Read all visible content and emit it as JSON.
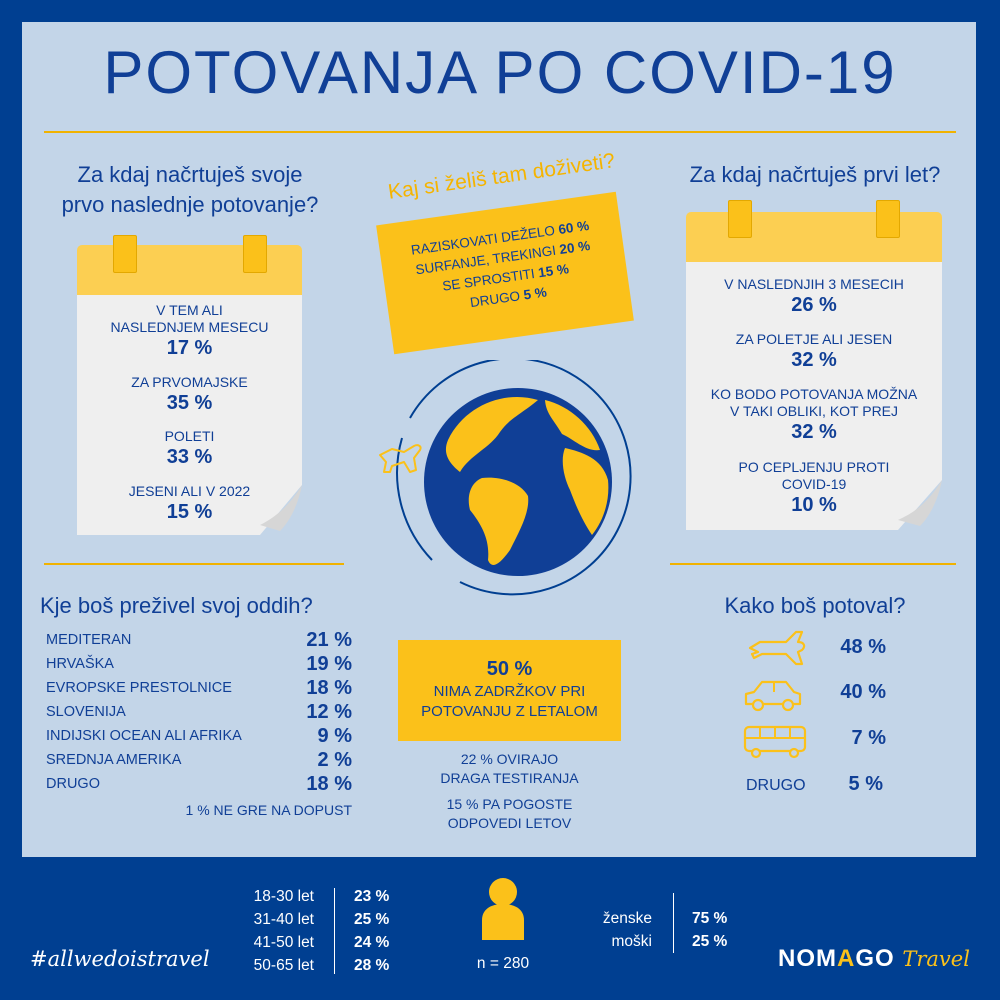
{
  "title": "POTOVANJA PO COVID-19",
  "left_question": {
    "line1": "Za kdaj načrtuješ svoje",
    "line2": "prvo naslednje potovanje?"
  },
  "left_calendar": [
    {
      "label1": "V TEM ALI",
      "label2": "NASLEDNJEM MESECU",
      "pct": "17 %"
    },
    {
      "label1": "ZA PRVOMAJSKE",
      "label2": "",
      "pct": "35 %"
    },
    {
      "label1": "POLETI",
      "label2": "",
      "pct": "33 %"
    },
    {
      "label1": "JESENI ALI V 2022",
      "label2": "",
      "pct": "15 %"
    }
  ],
  "center_question": "Kaj si želiš tam doživeti?",
  "experience": [
    {
      "label": "RAZISKOVATI DEŽELO",
      "pct": "60 %"
    },
    {
      "label": "SURFANJE, TREKINGI",
      "pct": "20 %"
    },
    {
      "label": "SE SPROSTITI",
      "pct": "15 %"
    },
    {
      "label": "DRUGO",
      "pct": "5 %"
    }
  ],
  "right_question": "Za kdaj načrtuješ prvi let?",
  "right_calendar": [
    {
      "label1": "V NASLEDNJIH 3 MESECIH",
      "label2": "",
      "pct": "26 %"
    },
    {
      "label1": "ZA POLETJE ALI JESEN",
      "label2": "",
      "pct": "32 %"
    },
    {
      "label1": "KO BODO POTOVANJA MOŽNA",
      "label2": "V TAKI OBLIKI, KOT PREJ",
      "pct": "32 %"
    },
    {
      "label1": "PO CEPLJENJU PROTI",
      "label2": "COVID-19",
      "pct": "10 %"
    }
  ],
  "dest_question": "Kje boš preživel svoj oddih?",
  "destinations": [
    {
      "name": "MEDITERAN",
      "pct": "21 %"
    },
    {
      "name": "HRVAŠKA",
      "pct": "19 %"
    },
    {
      "name": "EVROPSKE PRESTOLNICE",
      "pct": "18 %"
    },
    {
      "name": "SLOVENIJA",
      "pct": "12 %"
    },
    {
      "name": "INDIJSKI OCEAN ALI AFRIKA",
      "pct": "9 %"
    },
    {
      "name": "SREDNJA AMERIKA",
      "pct": "2 %"
    },
    {
      "name": "DRUGO",
      "pct": "18 %"
    }
  ],
  "dest_note": "1 % NE GRE NA DOPUST",
  "flying": {
    "pct": "50 %",
    "line1": "NIMA ZADRŽKOV PRI",
    "line2": "POTOVANJU Z LETALOM"
  },
  "flying_notes": [
    {
      "line1": "22 % OVIRAJO",
      "line2": "DRAGA TESTIRANJA"
    },
    {
      "line1": "15 % PA POGOSTE",
      "line2": "ODPOVEDI LETOV"
    }
  ],
  "transport_question": "Kako boš potoval?",
  "transport": [
    {
      "icon": "airplane-icon",
      "pct": "48 %"
    },
    {
      "icon": "car-icon",
      "pct": "40 %"
    },
    {
      "icon": "bus-icon",
      "pct": "7 %"
    },
    {
      "label": "DRUGO",
      "pct": "5 %"
    }
  ],
  "ages": [
    {
      "range": "18-30 let",
      "pct": "23 %"
    },
    {
      "range": "31-40 let",
      "pct": "25 %"
    },
    {
      "range": "41-50 let",
      "pct": "24 %"
    },
    {
      "range": "50-65 let",
      "pct": "28 %"
    }
  ],
  "sample": "n = 280",
  "gender": [
    {
      "label": "ženske",
      "pct": "75 %"
    },
    {
      "label": "moški",
      "pct": "25 %"
    }
  ],
  "hashtag": "#allwedoistravel",
  "brand": {
    "name_pre": "NOM",
    "name_a": "A",
    "name_post": "GO",
    "suffix": "Travel"
  },
  "colors": {
    "navy": "#003f91",
    "text_blue": "#103f96",
    "yellow": "#fbc11a",
    "panel": "#c3d5e8"
  }
}
